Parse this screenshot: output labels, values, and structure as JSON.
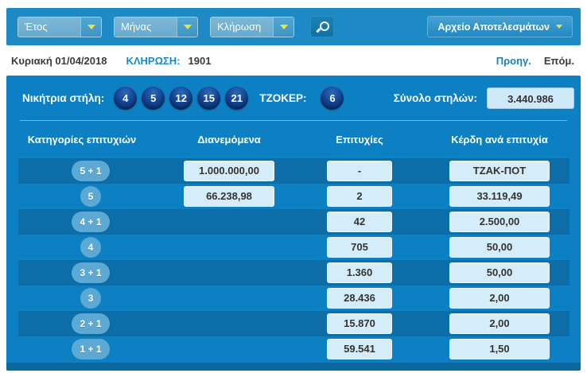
{
  "toolbar": {
    "year_label": "Έτος",
    "month_label": "Μήνας",
    "draw_label": "Κλήρωση",
    "archive_button": "Αρχείο Αποτελεσμάτων"
  },
  "draw_info": {
    "date": "Κυριακή 01/04/2018",
    "draw_label": "ΚΛΗΡΩΣΗ:",
    "draw_number": "1901",
    "prev_link": "Προηγ.",
    "next_link": "Επόμ."
  },
  "results": {
    "winning_label": "Νικήτρια στήλη:",
    "numbers": [
      "4",
      "5",
      "12",
      "15",
      "21"
    ],
    "joker_label": "ΤΖΟΚΕΡ:",
    "joker_number": "6",
    "total_label": "Σύνολο στηλών:",
    "total_value": "3.440.986"
  },
  "table": {
    "headers": [
      "Κατηγορίες επιτυχιών",
      "Διανεμόμενα",
      "Επιτυχίες",
      "Κέρδη ανά επιτυχία"
    ],
    "rows": [
      {
        "category": "5 + 1",
        "distributed": "1.000.000,00",
        "winners": "-",
        "prize": "ΤΖΑΚ-ΠΟΤ"
      },
      {
        "category": "5",
        "distributed": "66.238,98",
        "winners": "2",
        "prize": "33.119,49"
      },
      {
        "category": "4 + 1",
        "distributed": "",
        "winners": "42",
        "prize": "2.500,00"
      },
      {
        "category": "4",
        "distributed": "",
        "winners": "705",
        "prize": "50,00"
      },
      {
        "category": "3 + 1",
        "distributed": "",
        "winners": "1.360",
        "prize": "50,00"
      },
      {
        "category": "3",
        "distributed": "",
        "winners": "28.436",
        "prize": "2,00"
      },
      {
        "category": "2 + 1",
        "distributed": "",
        "winners": "15.870",
        "prize": "2,00"
      },
      {
        "category": "1 + 1",
        "distributed": "",
        "winners": "59.541",
        "prize": "1,50"
      }
    ]
  },
  "colors": {
    "topbar": "#1d8ac6",
    "panel": "#0d80c4",
    "stripe": "#0c6da7",
    "footer_strip": "#0a689f",
    "value_box": "#d5ecf9",
    "badge": "#5ba9d4",
    "ball_dark": "#072f6e",
    "arrow_yellow": "#ece43e",
    "link_blue": "#1a7cc0"
  }
}
